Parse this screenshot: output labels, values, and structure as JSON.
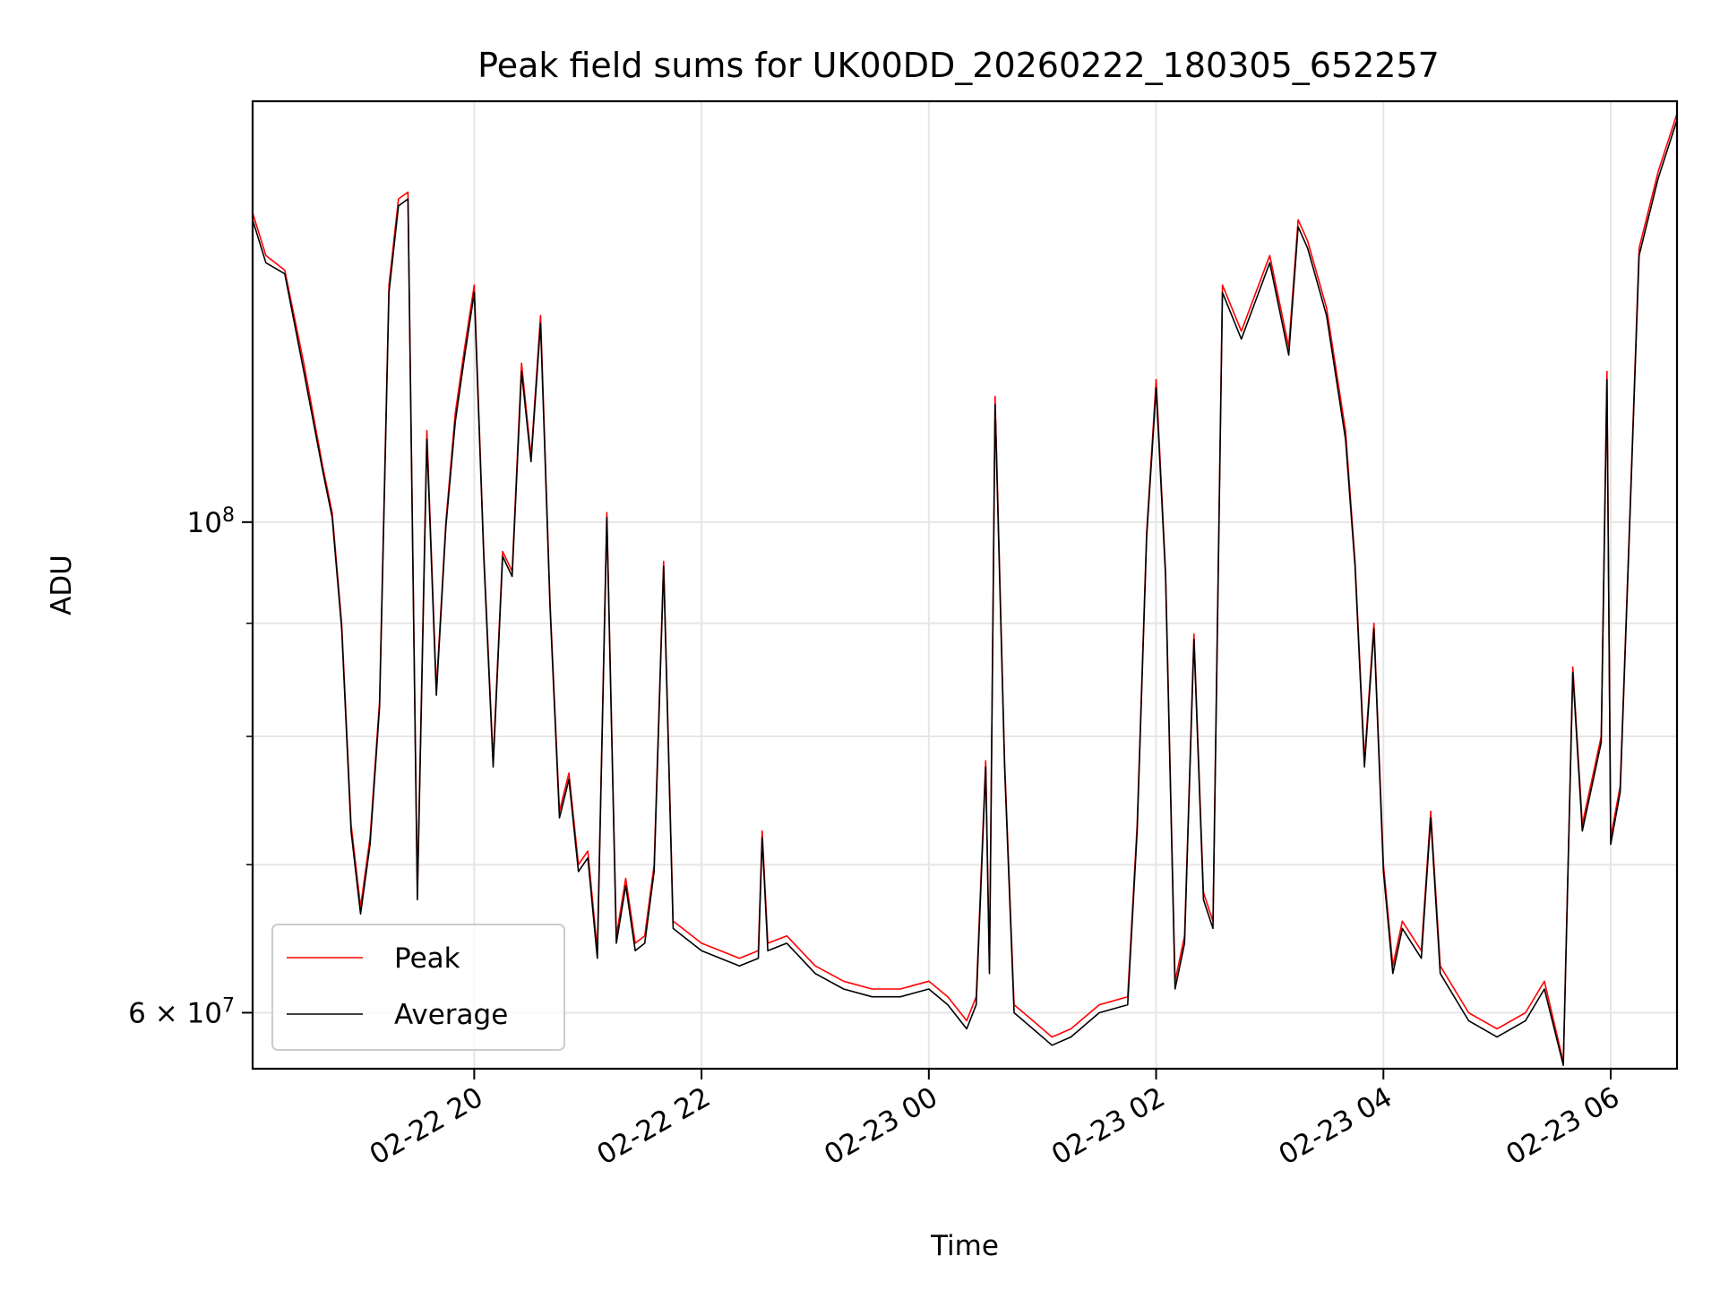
{
  "chart_data": {
    "type": "line",
    "title": "Peak field sums for UK00DD_20260222_180305_652257",
    "xlabel": "Time",
    "ylabel": "ADU",
    "y_scale": "log",
    "grid": true,
    "legend_placement": "lower-left",
    "xlim": [
      "2026-02-22 18:03",
      "2026-02-23 06:35"
    ],
    "ylim": [
      56600000,
      155000000
    ],
    "x_ticks": [
      {
        "value": "2026-02-22 20:00",
        "label": "02-22 20"
      },
      {
        "value": "2026-02-22 22:00",
        "label": "02-22 22"
      },
      {
        "value": "2026-02-23 00:00",
        "label": "02-23 00"
      },
      {
        "value": "2026-02-23 02:00",
        "label": "02-23 02"
      },
      {
        "value": "2026-02-23 04:00",
        "label": "02-23 04"
      },
      {
        "value": "2026-02-23 06:00",
        "label": "02-23 06"
      }
    ],
    "y_major_ticks": [
      {
        "value": 60000000,
        "mantissa": "6",
        "exponent": "7"
      },
      {
        "value": 100000000,
        "mantissa": "",
        "exponent": "8"
      }
    ],
    "y_minor_gridlines": [
      70000000,
      80000000,
      90000000
    ],
    "series": [
      {
        "name": "Peak",
        "color": "#ff0000",
        "points": [
          [
            "2026-02-22 18:03",
            138000000
          ],
          [
            "2026-02-22 18:10",
            132000000
          ],
          [
            "2026-02-22 18:20",
            130000000
          ],
          [
            "2026-02-22 18:30",
            118000000
          ],
          [
            "2026-02-22 18:40",
            106000000
          ],
          [
            "2026-02-22 18:45",
            101000000
          ],
          [
            "2026-02-22 18:50",
            90000000
          ],
          [
            "2026-02-22 18:55",
            73000000
          ],
          [
            "2026-02-22 19:00",
            67000000
          ],
          [
            "2026-02-22 19:05",
            72000000
          ],
          [
            "2026-02-22 19:10",
            83000000
          ],
          [
            "2026-02-22 19:15",
            128000000
          ],
          [
            "2026-02-22 19:20",
            140000000
          ],
          [
            "2026-02-22 19:25",
            141000000
          ],
          [
            "2026-02-22 19:30",
            68000000
          ],
          [
            "2026-02-22 19:35",
            110000000
          ],
          [
            "2026-02-22 19:40",
            84000000
          ],
          [
            "2026-02-22 19:45",
            100000000
          ],
          [
            "2026-02-22 19:50",
            112000000
          ],
          [
            "2026-02-22 19:55",
            120000000
          ],
          [
            "2026-02-22 20:00",
            128000000
          ],
          [
            "2026-02-22 20:05",
            97000000
          ],
          [
            "2026-02-22 20:10",
            78000000
          ],
          [
            "2026-02-22 20:15",
            97000000
          ],
          [
            "2026-02-22 20:20",
            95000000
          ],
          [
            "2026-02-22 20:25",
            118000000
          ],
          [
            "2026-02-22 20:30",
            107000000
          ],
          [
            "2026-02-22 20:35",
            124000000
          ],
          [
            "2026-02-22 20:40",
            92000000
          ],
          [
            "2026-02-22 20:45",
            74000000
          ],
          [
            "2026-02-22 20:50",
            77000000
          ],
          [
            "2026-02-22 20:55",
            70000000
          ],
          [
            "2026-02-22 21:00",
            71000000
          ],
          [
            "2026-02-22 21:05",
            64000000
          ],
          [
            "2026-02-22 21:10",
            101000000
          ],
          [
            "2026-02-22 21:15",
            65000000
          ],
          [
            "2026-02-22 21:20",
            69000000
          ],
          [
            "2026-02-22 21:25",
            64500000
          ],
          [
            "2026-02-22 21:30",
            65000000
          ],
          [
            "2026-02-22 21:35",
            70000000
          ],
          [
            "2026-02-22 21:40",
            96000000
          ],
          [
            "2026-02-22 21:45",
            66000000
          ],
          [
            "2026-02-22 21:50",
            65500000
          ],
          [
            "2026-02-22 22:00",
            64500000
          ],
          [
            "2026-02-22 22:10",
            64000000
          ],
          [
            "2026-02-22 22:20",
            63500000
          ],
          [
            "2026-02-22 22:30",
            64000000
          ],
          [
            "2026-02-22 22:32",
            72500000
          ],
          [
            "2026-02-22 22:35",
            64500000
          ],
          [
            "2026-02-22 22:45",
            65000000
          ],
          [
            "2026-02-22 23:00",
            63000000
          ],
          [
            "2026-02-22 23:15",
            62000000
          ],
          [
            "2026-02-22 23:30",
            61500000
          ],
          [
            "2026-02-22 23:45",
            61500000
          ],
          [
            "2026-02-23 00:00",
            62000000
          ],
          [
            "2026-02-23 00:10",
            61000000
          ],
          [
            "2026-02-23 00:20",
            59500000
          ],
          [
            "2026-02-23 00:25",
            61000000
          ],
          [
            "2026-02-23 00:30",
            78000000
          ],
          [
            "2026-02-23 00:32",
            63000000
          ],
          [
            "2026-02-23 00:35",
            114000000
          ],
          [
            "2026-02-23 00:40",
            78000000
          ],
          [
            "2026-02-23 00:45",
            60500000
          ],
          [
            "2026-02-23 00:55",
            59500000
          ],
          [
            "2026-02-23 01:05",
            58500000
          ],
          [
            "2026-02-23 01:15",
            59000000
          ],
          [
            "2026-02-23 01:30",
            60500000
          ],
          [
            "2026-02-23 01:45",
            61000000
          ],
          [
            "2026-02-23 01:50",
            73000000
          ],
          [
            "2026-02-23 01:55",
            99000000
          ],
          [
            "2026-02-23 02:00",
            116000000
          ],
          [
            "2026-02-23 02:05",
            95000000
          ],
          [
            "2026-02-23 02:10",
            62000000
          ],
          [
            "2026-02-23 02:15",
            65000000
          ],
          [
            "2026-02-23 02:20",
            89000000
          ],
          [
            "2026-02-23 02:25",
            68000000
          ],
          [
            "2026-02-23 02:30",
            66000000
          ],
          [
            "2026-02-23 02:35",
            128000000
          ],
          [
            "2026-02-23 02:45",
            122000000
          ],
          [
            "2026-02-23 03:00",
            132000000
          ],
          [
            "2026-02-23 03:10",
            120000000
          ],
          [
            "2026-02-23 03:15",
            137000000
          ],
          [
            "2026-02-23 03:20",
            134000000
          ],
          [
            "2026-02-23 03:30",
            125000000
          ],
          [
            "2026-02-23 03:40",
            110000000
          ],
          [
            "2026-02-23 03:45",
            96000000
          ],
          [
            "2026-02-23 03:50",
            78000000
          ],
          [
            "2026-02-23 03:55",
            90000000
          ],
          [
            "2026-02-23 04:00",
            70000000
          ],
          [
            "2026-02-23 04:05",
            63000000
          ],
          [
            "2026-02-23 04:10",
            66000000
          ],
          [
            "2026-02-23 04:20",
            64000000
          ],
          [
            "2026-02-23 04:25",
            74000000
          ],
          [
            "2026-02-23 04:30",
            63000000
          ],
          [
            "2026-02-23 04:45",
            60000000
          ],
          [
            "2026-02-23 05:00",
            59000000
          ],
          [
            "2026-02-23 05:15",
            60000000
          ],
          [
            "2026-02-23 05:25",
            62000000
          ],
          [
            "2026-02-23 05:35",
            57000000
          ],
          [
            "2026-02-23 05:40",
            86000000
          ],
          [
            "2026-02-23 05:45",
            73000000
          ],
          [
            "2026-02-23 05:55",
            80000000
          ],
          [
            "2026-02-23 05:58",
            117000000
          ],
          [
            "2026-02-23 06:00",
            72000000
          ],
          [
            "2026-02-23 06:05",
            76000000
          ],
          [
            "2026-02-23 06:10",
            100000000
          ],
          [
            "2026-02-23 06:15",
            133000000
          ],
          [
            "2026-02-23 06:25",
            144000000
          ],
          [
            "2026-02-23 06:35",
            153000000
          ]
        ]
      },
      {
        "name": "Average",
        "color": "#000000",
        "points": [
          [
            "2026-02-22 18:03",
            137000000
          ],
          [
            "2026-02-22 18:10",
            131000000
          ],
          [
            "2026-02-22 18:20",
            129500000
          ],
          [
            "2026-02-22 18:30",
            117000000
          ],
          [
            "2026-02-22 18:40",
            105500000
          ],
          [
            "2026-02-22 18:45",
            100500000
          ],
          [
            "2026-02-22 18:50",
            89500000
          ],
          [
            "2026-02-22 18:55",
            72500000
          ],
          [
            "2026-02-22 19:00",
            66500000
          ],
          [
            "2026-02-22 19:05",
            71500000
          ],
          [
            "2026-02-22 19:10",
            82500000
          ],
          [
            "2026-02-22 19:15",
            127000000
          ],
          [
            "2026-02-22 19:20",
            139000000
          ],
          [
            "2026-02-22 19:25",
            140000000
          ],
          [
            "2026-02-22 19:30",
            67500000
          ],
          [
            "2026-02-22 19:35",
            109000000
          ],
          [
            "2026-02-22 19:40",
            83500000
          ],
          [
            "2026-02-22 19:45",
            99500000
          ],
          [
            "2026-02-22 19:50",
            111000000
          ],
          [
            "2026-02-22 19:55",
            119000000
          ],
          [
            "2026-02-22 20:00",
            127000000
          ],
          [
            "2026-02-22 20:05",
            96500000
          ],
          [
            "2026-02-22 20:10",
            77500000
          ],
          [
            "2026-02-22 20:15",
            96500000
          ],
          [
            "2026-02-22 20:20",
            94500000
          ],
          [
            "2026-02-22 20:25",
            117000000
          ],
          [
            "2026-02-22 20:30",
            106500000
          ],
          [
            "2026-02-22 20:35",
            123000000
          ],
          [
            "2026-02-22 20:40",
            91500000
          ],
          [
            "2026-02-22 20:45",
            73500000
          ],
          [
            "2026-02-22 20:50",
            76500000
          ],
          [
            "2026-02-22 20:55",
            69500000
          ],
          [
            "2026-02-22 21:00",
            70500000
          ],
          [
            "2026-02-22 21:05",
            63500000
          ],
          [
            "2026-02-22 21:10",
            100500000
          ],
          [
            "2026-02-22 21:15",
            64500000
          ],
          [
            "2026-02-22 21:20",
            68500000
          ],
          [
            "2026-02-22 21:25",
            64000000
          ],
          [
            "2026-02-22 21:30",
            64500000
          ],
          [
            "2026-02-22 21:35",
            69500000
          ],
          [
            "2026-02-22 21:40",
            95500000
          ],
          [
            "2026-02-22 21:45",
            65500000
          ],
          [
            "2026-02-22 21:50",
            65000000
          ],
          [
            "2026-02-22 22:00",
            64000000
          ],
          [
            "2026-02-22 22:10",
            63500000
          ],
          [
            "2026-02-22 22:20",
            63000000
          ],
          [
            "2026-02-22 22:30",
            63500000
          ],
          [
            "2026-02-22 22:32",
            72000000
          ],
          [
            "2026-02-22 22:35",
            64000000
          ],
          [
            "2026-02-22 22:45",
            64500000
          ],
          [
            "2026-02-22 23:00",
            62500000
          ],
          [
            "2026-02-22 23:15",
            61500000
          ],
          [
            "2026-02-22 23:30",
            61000000
          ],
          [
            "2026-02-22 23:45",
            61000000
          ],
          [
            "2026-02-23 00:00",
            61500000
          ],
          [
            "2026-02-23 00:10",
            60500000
          ],
          [
            "2026-02-23 00:20",
            59000000
          ],
          [
            "2026-02-23 00:25",
            60500000
          ],
          [
            "2026-02-23 00:30",
            77500000
          ],
          [
            "2026-02-23 00:32",
            62500000
          ],
          [
            "2026-02-23 00:35",
            113000000
          ],
          [
            "2026-02-23 00:40",
            77500000
          ],
          [
            "2026-02-23 00:45",
            60000000
          ],
          [
            "2026-02-23 00:55",
            59000000
          ],
          [
            "2026-02-23 01:05",
            58000000
          ],
          [
            "2026-02-23 01:15",
            58500000
          ],
          [
            "2026-02-23 01:30",
            60000000
          ],
          [
            "2026-02-23 01:45",
            60500000
          ],
          [
            "2026-02-23 01:50",
            72500000
          ],
          [
            "2026-02-23 01:55",
            98500000
          ],
          [
            "2026-02-23 02:00",
            115000000
          ],
          [
            "2026-02-23 02:05",
            94500000
          ],
          [
            "2026-02-23 02:10",
            61500000
          ],
          [
            "2026-02-23 02:15",
            64500000
          ],
          [
            "2026-02-23 02:20",
            88500000
          ],
          [
            "2026-02-23 02:25",
            67500000
          ],
          [
            "2026-02-23 02:30",
            65500000
          ],
          [
            "2026-02-23 02:35",
            127000000
          ],
          [
            "2026-02-23 02:45",
            121000000
          ],
          [
            "2026-02-23 03:00",
            131000000
          ],
          [
            "2026-02-23 03:10",
            119000000
          ],
          [
            "2026-02-23 03:15",
            136000000
          ],
          [
            "2026-02-23 03:20",
            133000000
          ],
          [
            "2026-02-23 03:30",
            124000000
          ],
          [
            "2026-02-23 03:40",
            109000000
          ],
          [
            "2026-02-23 03:45",
            95500000
          ],
          [
            "2026-02-23 03:50",
            77500000
          ],
          [
            "2026-02-23 03:55",
            89500000
          ],
          [
            "2026-02-23 04:00",
            69500000
          ],
          [
            "2026-02-23 04:05",
            62500000
          ],
          [
            "2026-02-23 04:10",
            65500000
          ],
          [
            "2026-02-23 04:20",
            63500000
          ],
          [
            "2026-02-23 04:25",
            73500000
          ],
          [
            "2026-02-23 04:30",
            62500000
          ],
          [
            "2026-02-23 04:45",
            59500000
          ],
          [
            "2026-02-23 05:00",
            58500000
          ],
          [
            "2026-02-23 05:15",
            59500000
          ],
          [
            "2026-02-23 05:25",
            61500000
          ],
          [
            "2026-02-23 05:35",
            56800000
          ],
          [
            "2026-02-23 05:40",
            85500000
          ],
          [
            "2026-02-23 05:45",
            72500000
          ],
          [
            "2026-02-23 05:55",
            79500000
          ],
          [
            "2026-02-23 05:58",
            116000000
          ],
          [
            "2026-02-23 06:00",
            71500000
          ],
          [
            "2026-02-23 06:05",
            75500000
          ],
          [
            "2026-02-23 06:10",
            99500000
          ],
          [
            "2026-02-23 06:15",
            132000000
          ],
          [
            "2026-02-23 06:25",
            143000000
          ],
          [
            "2026-02-23 06:35",
            152000000
          ]
        ]
      }
    ]
  }
}
